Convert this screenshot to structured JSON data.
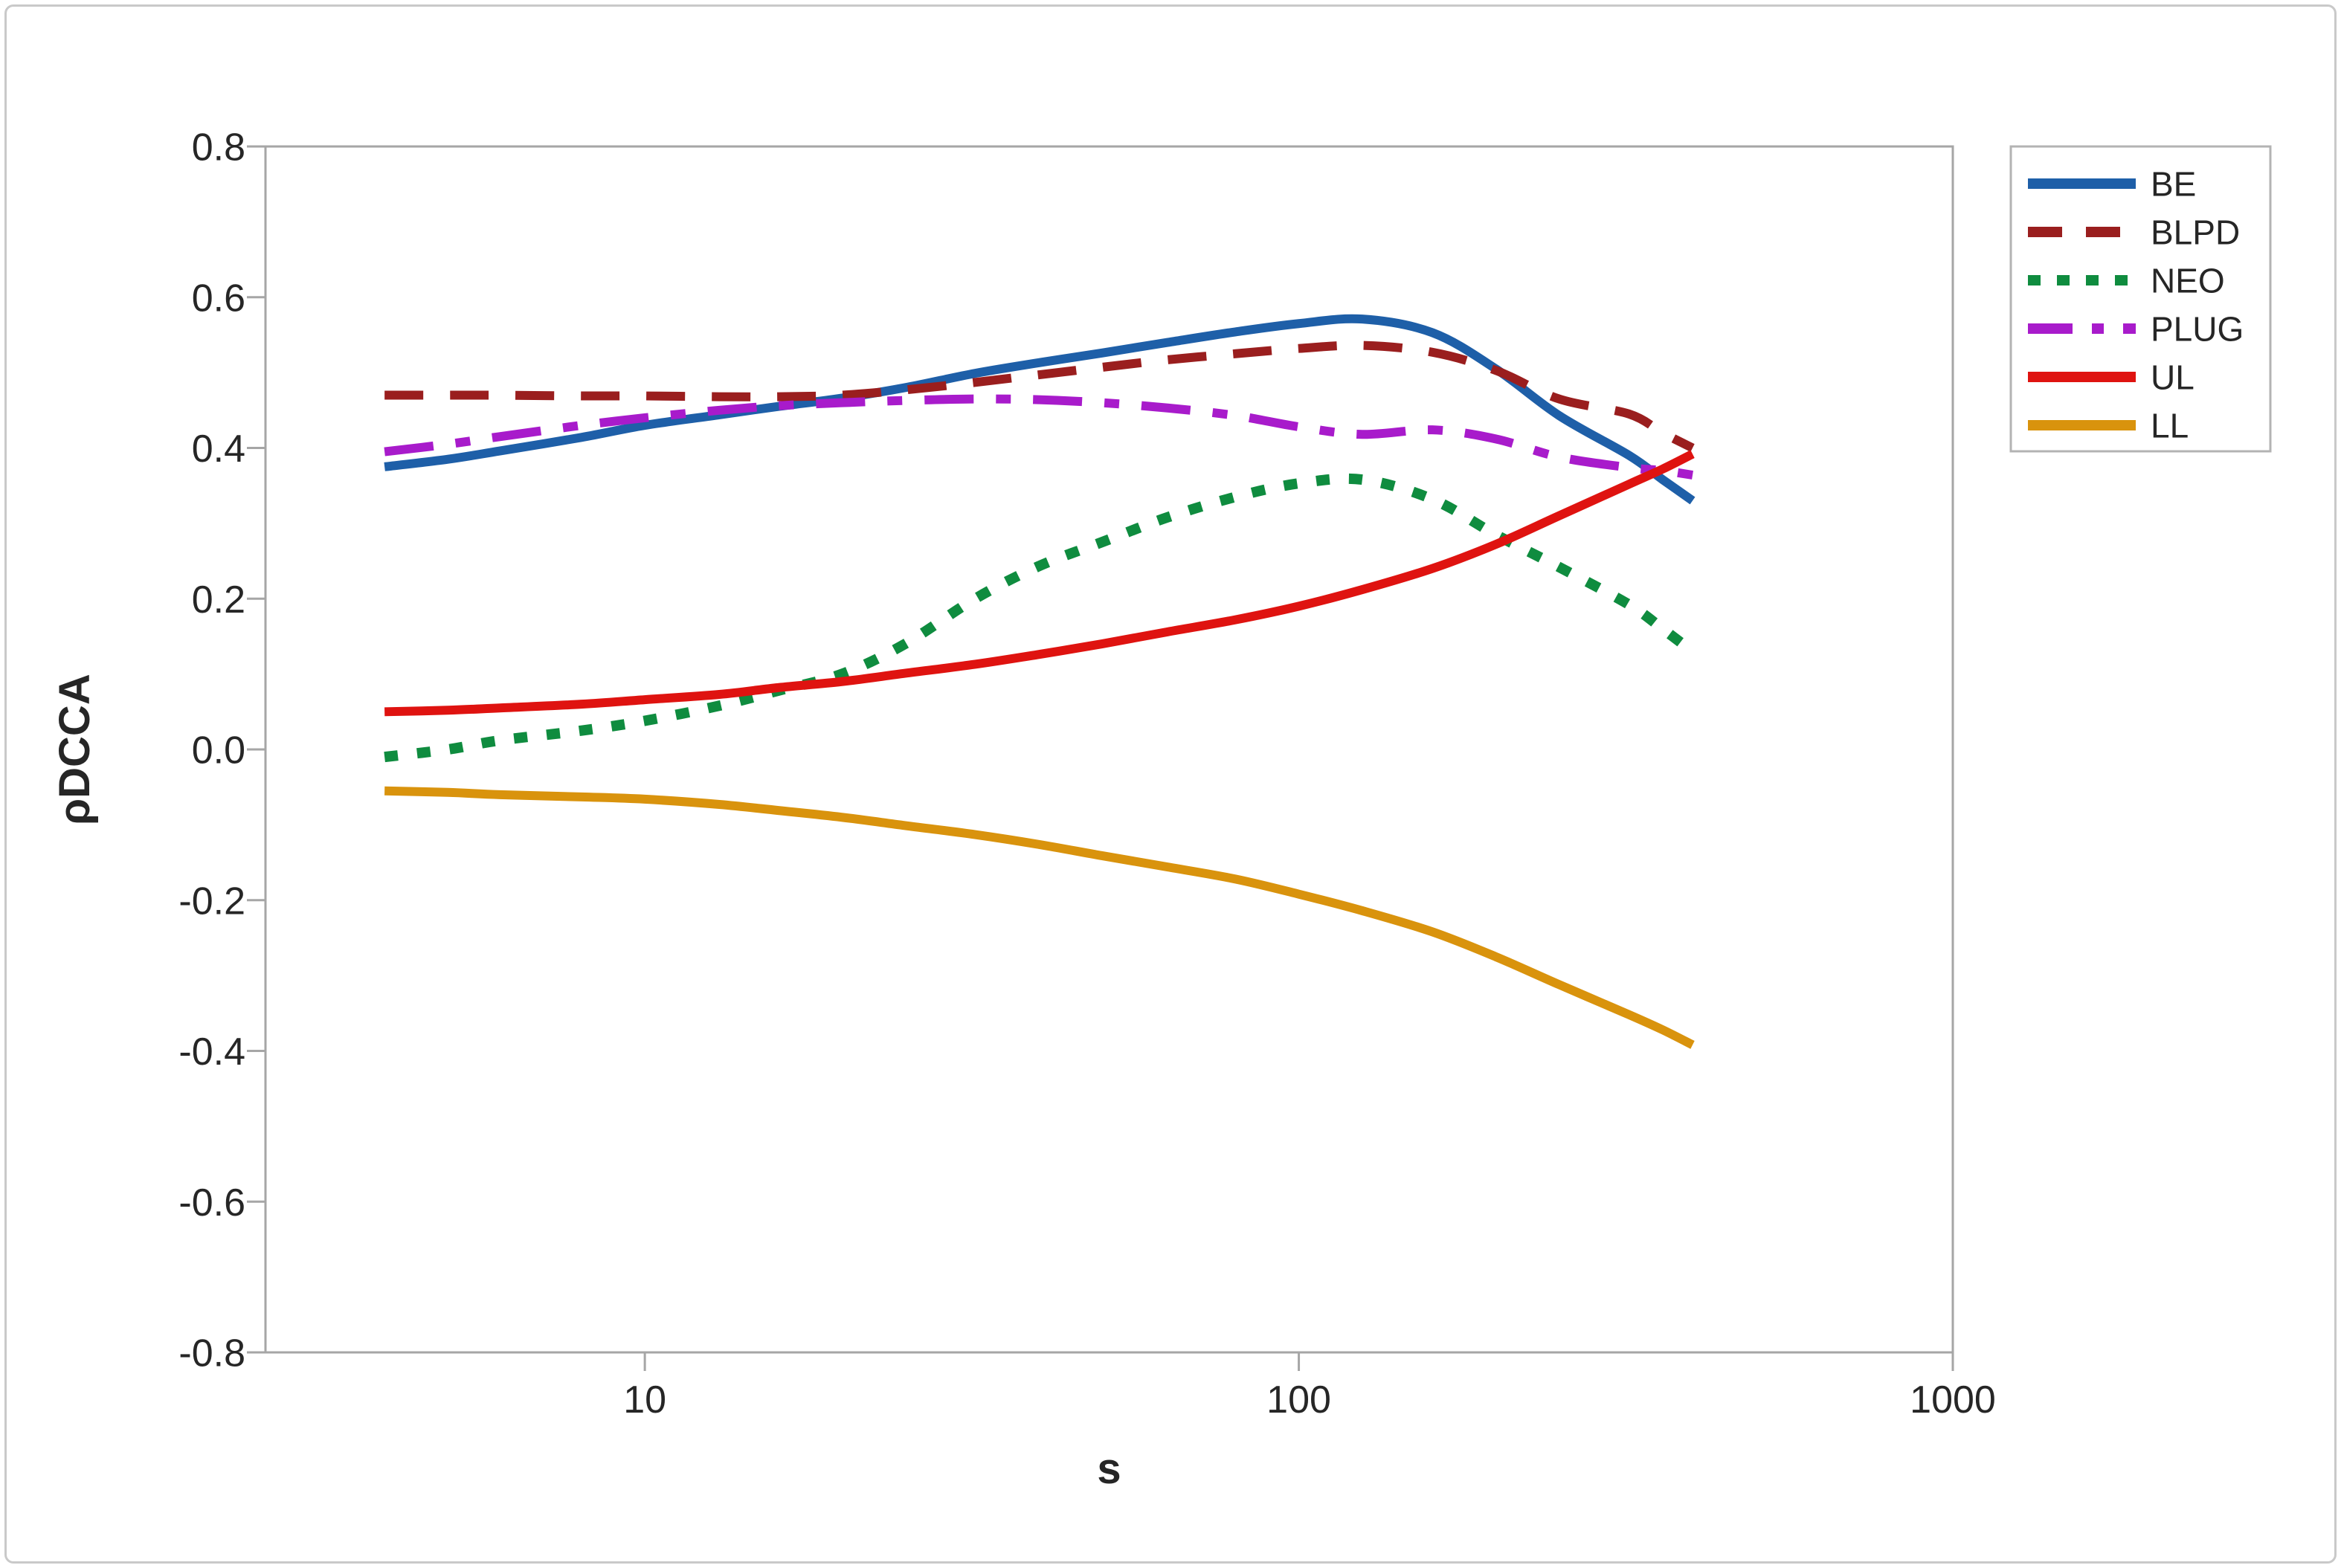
{
  "figure": {
    "background": "#ffffff",
    "border_color": "#c9c9c9",
    "axis_color": "#a6a6a6",
    "text_color": "#262626",
    "legend_border_color": "#b3b3b3"
  },
  "chart_data": {
    "type": "line",
    "title": "",
    "xlabel": "s",
    "ylabel": "ρDCCA",
    "x_scale": "log",
    "xlim": [
      2.63,
      1000
    ],
    "ylim": [
      -0.8,
      0.8
    ],
    "grid": false,
    "legend_position": "outside-right",
    "x_ticks": [
      10,
      100,
      1000
    ],
    "x_tick_labels": [
      "10",
      "100",
      "1000"
    ],
    "y_ticks": [
      0.8,
      0.6,
      0.4,
      0.2,
      0.0,
      -0.2,
      -0.4,
      -0.6,
      -0.8
    ],
    "y_tick_labels": [
      "0.8",
      "0.6",
      "0.4",
      "0.2",
      "0.0",
      "-0.2",
      "-0.4",
      "-0.6",
      "-0.8"
    ],
    "x": [
      4,
      5,
      6,
      8,
      10,
      13,
      16,
      20,
      25,
      32,
      40,
      50,
      63,
      80,
      100,
      125,
      160,
      200,
      250,
      320,
      360,
      400
    ],
    "series": [
      {
        "name": "BE",
        "color": "#1E5FA8",
        "style": "solid",
        "values": [
          0.375,
          0.385,
          0.396,
          0.414,
          0.43,
          0.444,
          0.455,
          0.466,
          0.48,
          0.499,
          0.513,
          0.526,
          0.54,
          0.554,
          0.565,
          0.571,
          0.553,
          0.505,
          0.443,
          0.39,
          0.358,
          0.33
        ]
      },
      {
        "name": "BLPD",
        "color": "#9A1E1E",
        "style": "dashed",
        "values": [
          0.47,
          0.47,
          0.47,
          0.469,
          0.469,
          0.468,
          0.468,
          0.47,
          0.477,
          0.487,
          0.497,
          0.507,
          0.517,
          0.525,
          0.532,
          0.536,
          0.527,
          0.503,
          0.465,
          0.445,
          0.42,
          0.4
        ]
      },
      {
        "name": "NEO",
        "color": "#0F8C3F",
        "style": "dotted",
        "values": [
          -0.01,
          0.0,
          0.012,
          0.025,
          0.038,
          0.058,
          0.078,
          0.1,
          0.14,
          0.2,
          0.243,
          0.275,
          0.308,
          0.335,
          0.353,
          0.358,
          0.332,
          0.285,
          0.242,
          0.192,
          0.16,
          0.13
        ]
      },
      {
        "name": "PLUG",
        "color": "#A81BCB",
        "style": "dash-dot",
        "values": [
          0.395,
          0.405,
          0.415,
          0.43,
          0.44,
          0.45,
          0.456,
          0.46,
          0.463,
          0.465,
          0.464,
          0.46,
          0.453,
          0.443,
          0.428,
          0.418,
          0.424,
          0.412,
          0.388,
          0.374,
          0.37,
          0.364
        ]
      },
      {
        "name": "UL",
        "color": "#DF1310",
        "style": "solid",
        "values": [
          0.05,
          0.052,
          0.055,
          0.06,
          0.066,
          0.073,
          0.082,
          0.09,
          0.101,
          0.113,
          0.126,
          0.14,
          0.156,
          0.172,
          0.19,
          0.212,
          0.24,
          0.272,
          0.31,
          0.352,
          0.372,
          0.392
        ]
      },
      {
        "name": "LL",
        "color": "#D9930D",
        "style": "solid",
        "values": [
          -0.055,
          -0.057,
          -0.06,
          -0.063,
          -0.066,
          -0.073,
          -0.081,
          -0.09,
          -0.101,
          -0.113,
          -0.126,
          -0.141,
          -0.156,
          -0.172,
          -0.192,
          -0.214,
          -0.242,
          -0.275,
          -0.312,
          -0.352,
          -0.372,
          -0.392
        ]
      }
    ],
    "legend_labels": [
      "BE",
      "BLPD",
      "NEO",
      "PLUG",
      "UL",
      "LL"
    ]
  }
}
